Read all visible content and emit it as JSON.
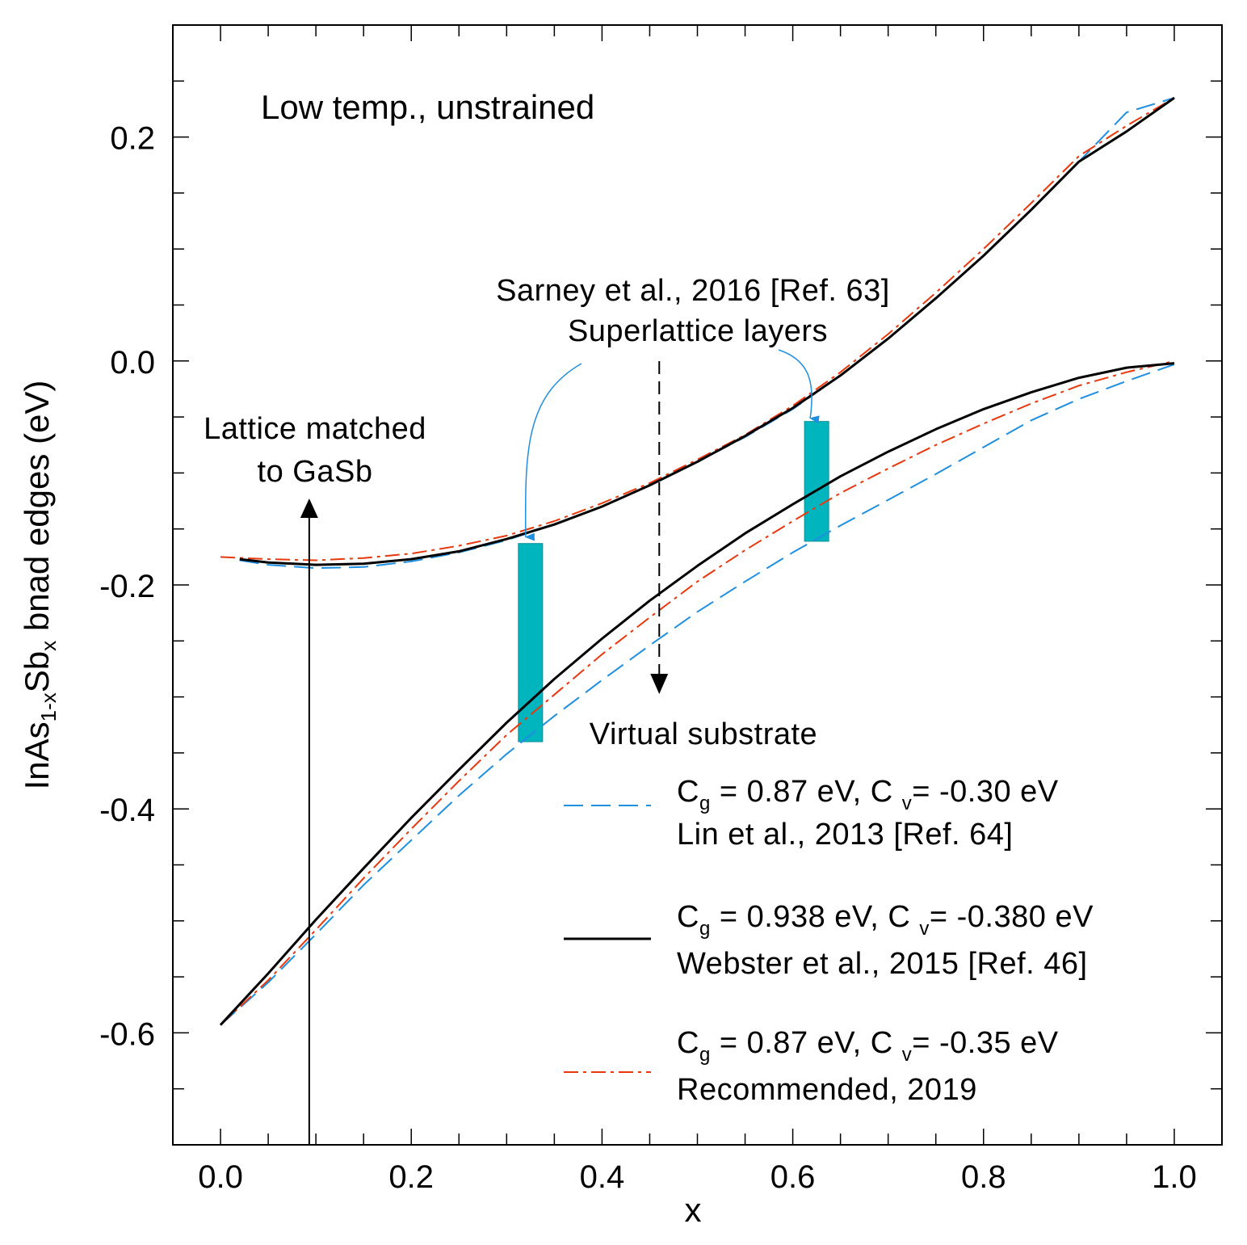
{
  "chart_data": {
    "type": "line",
    "title": "Low temp., unstrained",
    "xlabel": "x",
    "ylabel": {
      "main": "InAs",
      "sub1": "1-x",
      "mid": "Sb",
      "sub2": "x",
      "rest": " bnad edges (eV)"
    },
    "xlim": [
      -0.05,
      1.05
    ],
    "ylim": [
      -0.7,
      0.3
    ],
    "x_ticks": [
      0.0,
      0.2,
      0.4,
      0.6,
      0.8,
      1.0
    ],
    "x_tick_labels": [
      "0.0",
      "0.2",
      "0.4",
      "0.6",
      "0.8",
      "1.0"
    ],
    "y_ticks": [
      -0.6,
      -0.4,
      -0.2,
      0.0,
      0.2
    ],
    "y_tick_labels": [
      "-0.6",
      "-0.4",
      "-0.2",
      "0.0",
      "0.2"
    ],
    "x_minor_step": 0.05,
    "y_minor_step": 0.05,
    "colors": {
      "lin": "#1f8fe0",
      "webster": "#000000",
      "recommended": "#e8380d",
      "superlattice": "#00b5be",
      "annotation_arrow": "#1f8fe0"
    },
    "series": [
      {
        "name": "Lin et al., 2013 [Ref. 64]",
        "style": "dashed",
        "conduction": {
          "x": [
            0.02,
            0.05,
            0.1,
            0.15,
            0.2,
            0.25,
            0.3,
            0.35,
            0.4,
            0.45,
            0.5,
            0.55,
            0.6,
            0.65,
            0.7,
            0.75,
            0.8,
            0.85,
            0.9,
            0.95,
            1.0
          ],
          "y": [
            -0.178,
            -0.182,
            -0.185,
            -0.184,
            -0.179,
            -0.171,
            -0.16,
            -0.146,
            -0.13,
            -0.111,
            -0.09,
            -0.068,
            -0.043,
            -0.013,
            0.02,
            0.056,
            0.094,
            0.135,
            0.178,
            0.222,
            0.235
          ]
        },
        "valence": {
          "x": [
            0.0,
            0.05,
            0.1,
            0.15,
            0.2,
            0.25,
            0.3,
            0.35,
            0.4,
            0.45,
            0.5,
            0.55,
            0.6,
            0.65,
            0.7,
            0.75,
            0.8,
            0.85,
            0.9,
            0.95,
            1.0
          ],
          "y": [
            -0.593,
            -0.555,
            -0.512,
            -0.468,
            -0.428,
            -0.388,
            -0.351,
            -0.317,
            -0.285,
            -0.254,
            -0.224,
            -0.197,
            -0.171,
            -0.147,
            -0.124,
            -0.101,
            -0.077,
            -0.053,
            -0.034,
            -0.018,
            -0.003
          ]
        }
      },
      {
        "name": "Webster et al., 2015 [Ref. 46]",
        "style": "solid",
        "conduction": {
          "x": [
            0.02,
            0.05,
            0.1,
            0.15,
            0.2,
            0.25,
            0.3,
            0.35,
            0.4,
            0.45,
            0.5,
            0.55,
            0.6,
            0.65,
            0.7,
            0.75,
            0.8,
            0.85,
            0.9,
            0.95,
            1.0
          ],
          "y": [
            -0.177,
            -0.18,
            -0.182,
            -0.181,
            -0.177,
            -0.17,
            -0.159,
            -0.146,
            -0.13,
            -0.111,
            -0.09,
            -0.067,
            -0.042,
            -0.013,
            0.02,
            0.056,
            0.094,
            0.135,
            0.178,
            0.205,
            0.235
          ]
        },
        "valence": {
          "x": [
            0.0,
            0.05,
            0.1,
            0.15,
            0.2,
            0.25,
            0.3,
            0.35,
            0.4,
            0.45,
            0.5,
            0.55,
            0.6,
            0.65,
            0.7,
            0.75,
            0.8,
            0.85,
            0.9,
            0.95,
            1.0
          ],
          "y": [
            -0.593,
            -0.547,
            -0.499,
            -0.453,
            -0.408,
            -0.365,
            -0.323,
            -0.284,
            -0.248,
            -0.214,
            -0.183,
            -0.154,
            -0.128,
            -0.103,
            -0.081,
            -0.061,
            -0.043,
            -0.028,
            -0.015,
            -0.006,
            -0.002
          ]
        }
      },
      {
        "name": "Recommended, 2019",
        "style": "dashdot",
        "conduction": {
          "x": [
            0.0,
            0.05,
            0.1,
            0.15,
            0.2,
            0.25,
            0.3,
            0.35,
            0.4,
            0.45,
            0.5,
            0.55,
            0.6,
            0.65,
            0.7,
            0.75,
            0.8,
            0.85,
            0.9,
            0.95,
            1.0
          ],
          "y": [
            -0.175,
            -0.177,
            -0.178,
            -0.176,
            -0.172,
            -0.165,
            -0.156,
            -0.143,
            -0.127,
            -0.109,
            -0.088,
            -0.066,
            -0.04,
            -0.01,
            0.024,
            0.061,
            0.1,
            0.141,
            0.183,
            0.21,
            0.235
          ]
        },
        "valence": {
          "x": [
            0.0,
            0.05,
            0.1,
            0.15,
            0.2,
            0.25,
            0.3,
            0.35,
            0.4,
            0.45,
            0.5,
            0.55,
            0.6,
            0.65,
            0.7,
            0.75,
            0.8,
            0.85,
            0.9,
            0.95,
            1.0
          ],
          "y": [
            -0.593,
            -0.553,
            -0.508,
            -0.462,
            -0.418,
            -0.375,
            -0.334,
            -0.298,
            -0.262,
            -0.229,
            -0.197,
            -0.169,
            -0.143,
            -0.118,
            -0.096,
            -0.075,
            -0.056,
            -0.038,
            -0.022,
            -0.01,
            0.0
          ]
        }
      }
    ],
    "legend": [
      {
        "key": "lin",
        "line1": "C",
        "sub_g": "g",
        "eq1": " = 0.87 eV, C ",
        "sub_v": "v",
        "eq2": "= -0.30 eV",
        "line2": "Lin et al., 2013 [Ref. 64]"
      },
      {
        "key": "webster",
        "line1": "C",
        "sub_g": "g",
        "eq1": " = 0.938 eV, C ",
        "sub_v": "v",
        "eq2": "= -0.380 eV",
        "line2": "Webster et al., 2015 [Ref. 46]"
      },
      {
        "key": "recommended",
        "line1": "C",
        "sub_g": "g",
        "eq1": " = 0.87 eV, C ",
        "sub_v": "v",
        "eq2": "= -0.35 eV",
        "line2": "Recommended, 2019"
      }
    ],
    "legend_position": "bottom-right",
    "superlattice_bars": [
      {
        "x": 0.325,
        "y_top": -0.163,
        "y_bottom": -0.34
      },
      {
        "x": 0.625,
        "y_top": -0.054,
        "y_bottom": -0.161
      }
    ],
    "annotations": {
      "sarney": "Sarney et al., 2016 [Ref. 63]",
      "superlattice": "Superlattice layers",
      "lattice_line1": "Lattice matched",
      "lattice_line2": "to GaSb",
      "lattice_x": 0.093,
      "virtual": "Virtual substrate",
      "virtual_x": 0.46
    }
  }
}
